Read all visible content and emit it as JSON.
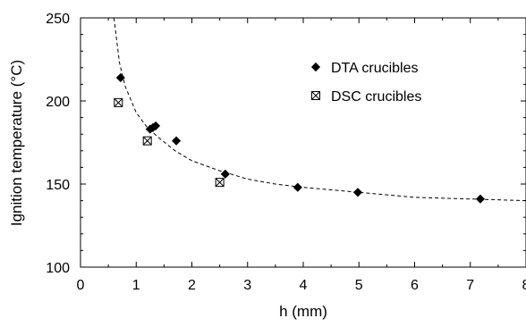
{
  "chart_data": {
    "type": "scatter",
    "title": "",
    "xlabel": "h (mm)",
    "ylabel": "Ignition temperature (°C)",
    "xlim": [
      0,
      8
    ],
    "ylim": [
      100,
      250
    ],
    "xticks": [
      "0",
      "1",
      "2",
      "3",
      "4",
      "5",
      "6",
      "7",
      "8"
    ],
    "yticks": [
      "100",
      "150",
      "200",
      "250"
    ],
    "grid": false,
    "legend_position": "top-right",
    "series": [
      {
        "name": "DTA crucibles",
        "marker": "diamond",
        "color": "#000000",
        "points": [
          {
            "x": 0.72,
            "y": 214
          },
          {
            "x": 1.25,
            "y": 183
          },
          {
            "x": 1.3,
            "y": 184
          },
          {
            "x": 1.35,
            "y": 185
          },
          {
            "x": 1.72,
            "y": 176
          },
          {
            "x": 2.6,
            "y": 156
          },
          {
            "x": 3.9,
            "y": 148
          },
          {
            "x": 4.98,
            "y": 145
          },
          {
            "x": 7.18,
            "y": 141
          }
        ]
      },
      {
        "name": "DSC crucibles",
        "marker": "boxed-x",
        "color": "#000000",
        "points": [
          {
            "x": 0.68,
            "y": 199
          },
          {
            "x": 1.2,
            "y": 176
          },
          {
            "x": 2.5,
            "y": 151
          }
        ]
      }
    ],
    "fit_curve": {
      "style": "dashed",
      "color": "#000000",
      "points": [
        {
          "x": 0.6,
          "y": 250
        },
        {
          "x": 0.7,
          "y": 223
        },
        {
          "x": 0.8,
          "y": 209
        },
        {
          "x": 1.0,
          "y": 193
        },
        {
          "x": 1.2,
          "y": 184
        },
        {
          "x": 1.4,
          "y": 178
        },
        {
          "x": 1.7,
          "y": 170
        },
        {
          "x": 2.0,
          "y": 164
        },
        {
          "x": 2.5,
          "y": 158
        },
        {
          "x": 3.0,
          "y": 153
        },
        {
          "x": 3.5,
          "y": 150
        },
        {
          "x": 4.0,
          "y": 148
        },
        {
          "x": 5.0,
          "y": 145
        },
        {
          "x": 6.0,
          "y": 142
        },
        {
          "x": 7.0,
          "y": 141
        },
        {
          "x": 8.0,
          "y": 140
        }
      ]
    }
  }
}
